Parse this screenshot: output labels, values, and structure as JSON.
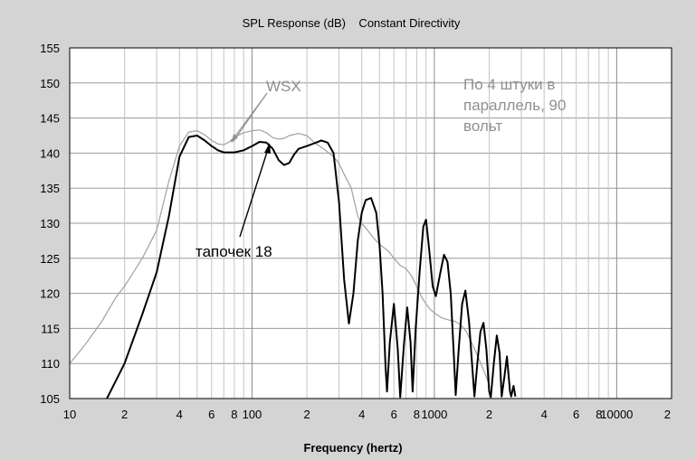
{
  "chart_data": {
    "type": "line",
    "title": "SPL Response (dB)    Constant Directivity",
    "xlabel": "Frequency (hertz)",
    "ylabel": "",
    "x_scale": "log",
    "xlim": [
      10,
      20000
    ],
    "ylim": [
      105,
      155
    ],
    "grid": true,
    "y_ticks": [
      "155",
      "150",
      "145",
      "140",
      "135",
      "130",
      "125",
      "120",
      "115",
      "110",
      "105"
    ],
    "x_ticks": [
      {
        "value": 10,
        "label": "10"
      },
      {
        "value": 20,
        "label": "2"
      },
      {
        "value": 40,
        "label": "4"
      },
      {
        "value": 60,
        "label": "6"
      },
      {
        "value": 80,
        "label": "8"
      },
      {
        "value": 100,
        "label": "100"
      },
      {
        "value": 200,
        "label": "2"
      },
      {
        "value": 400,
        "label": "4"
      },
      {
        "value": 600,
        "label": "6"
      },
      {
        "value": 800,
        "label": "8"
      },
      {
        "value": 1000,
        "label": "1000"
      },
      {
        "value": 2000,
        "label": "2"
      },
      {
        "value": 4000,
        "label": "4"
      },
      {
        "value": 6000,
        "label": "6"
      },
      {
        "value": 8000,
        "label": "8"
      },
      {
        "value": 10000,
        "label": "10000"
      },
      {
        "value": 20000,
        "label": "2"
      }
    ],
    "series": [
      {
        "name": "WSX",
        "color": "#a0a0a0",
        "points": [
          [
            10,
            110
          ],
          [
            12,
            112.5
          ],
          [
            15,
            116
          ],
          [
            18,
            119.5
          ],
          [
            20,
            121
          ],
          [
            25,
            125
          ],
          [
            30,
            129
          ],
          [
            35,
            136
          ],
          [
            40,
            141
          ],
          [
            45,
            143
          ],
          [
            50,
            143.2
          ],
          [
            55,
            142.6
          ],
          [
            60,
            141.8
          ],
          [
            65,
            141.3
          ],
          [
            70,
            141.2
          ],
          [
            75,
            141.6
          ],
          [
            80,
            142.3
          ],
          [
            90,
            142.9
          ],
          [
            100,
            143.2
          ],
          [
            110,
            143.3
          ],
          [
            120,
            142.9
          ],
          [
            130,
            142.2
          ],
          [
            140,
            142
          ],
          [
            150,
            142.1
          ],
          [
            160,
            142.5
          ],
          [
            180,
            142.8
          ],
          [
            200,
            142.5
          ],
          [
            220,
            141.5
          ],
          [
            250,
            140.5
          ],
          [
            280,
            139.5
          ],
          [
            300,
            138.5
          ],
          [
            320,
            137
          ],
          [
            350,
            135
          ],
          [
            380,
            131
          ],
          [
            400,
            130
          ],
          [
            430,
            129
          ],
          [
            460,
            128
          ],
          [
            500,
            127
          ],
          [
            530,
            126.5
          ],
          [
            560,
            126
          ],
          [
            600,
            125
          ],
          [
            650,
            124
          ],
          [
            700,
            123.5
          ],
          [
            750,
            122.5
          ],
          [
            800,
            121
          ],
          [
            850,
            119.5
          ],
          [
            900,
            118.5
          ],
          [
            950,
            117.7
          ],
          [
            1000,
            117.2
          ],
          [
            1100,
            116.5
          ],
          [
            1200,
            116.2
          ],
          [
            1300,
            116
          ],
          [
            1400,
            115.5
          ],
          [
            1500,
            114.5
          ],
          [
            1600,
            113
          ],
          [
            1700,
            111.5
          ],
          [
            1800,
            110
          ],
          [
            1900,
            108.5
          ],
          [
            2000,
            107
          ]
        ]
      },
      {
        "name": "тапочек 18",
        "color": "#000000",
        "points": [
          [
            16,
            105
          ],
          [
            20,
            110
          ],
          [
            25,
            117
          ],
          [
            30,
            123
          ],
          [
            35,
            131
          ],
          [
            40,
            139.5
          ],
          [
            45,
            142.3
          ],
          [
            50,
            142.5
          ],
          [
            55,
            141.8
          ],
          [
            60,
            141
          ],
          [
            65,
            140.4
          ],
          [
            70,
            140.1
          ],
          [
            75,
            140.1
          ],
          [
            80,
            140.1
          ],
          [
            90,
            140.4
          ],
          [
            100,
            141
          ],
          [
            110,
            141.6
          ],
          [
            120,
            141.5
          ],
          [
            130,
            140.6
          ],
          [
            140,
            139
          ],
          [
            150,
            138.3
          ],
          [
            160,
            138.6
          ],
          [
            170,
            139.8
          ],
          [
            180,
            140.6
          ],
          [
            200,
            141
          ],
          [
            220,
            141.4
          ],
          [
            240,
            141.8
          ],
          [
            260,
            141.5
          ],
          [
            280,
            140
          ],
          [
            300,
            133
          ],
          [
            320,
            122
          ],
          [
            340,
            115.7
          ],
          [
            360,
            120
          ],
          [
            380,
            127.5
          ],
          [
            400,
            131.5
          ],
          [
            420,
            133.3
          ],
          [
            450,
            133.6
          ],
          [
            480,
            131.5
          ],
          [
            500,
            127
          ],
          [
            520,
            120
          ],
          [
            540,
            109.5
          ],
          [
            550,
            106
          ],
          [
            570,
            113
          ],
          [
            600,
            118.5
          ],
          [
            630,
            112
          ],
          [
            650,
            105.2
          ],
          [
            680,
            112.5
          ],
          [
            710,
            118
          ],
          [
            740,
            113
          ],
          [
            760,
            106
          ],
          [
            790,
            115
          ],
          [
            830,
            123
          ],
          [
            870,
            129.5
          ],
          [
            900,
            130.5
          ],
          [
            930,
            127
          ],
          [
            980,
            121
          ],
          [
            1020,
            119.6
          ],
          [
            1080,
            123
          ],
          [
            1130,
            125.5
          ],
          [
            1180,
            124.5
          ],
          [
            1230,
            120
          ],
          [
            1280,
            111
          ],
          [
            1310,
            105.5
          ],
          [
            1360,
            112
          ],
          [
            1420,
            118.5
          ],
          [
            1480,
            120.4
          ],
          [
            1550,
            116
          ],
          [
            1620,
            109
          ],
          [
            1660,
            105.3
          ],
          [
            1720,
            110
          ],
          [
            1790,
            114.5
          ],
          [
            1860,
            115.8
          ],
          [
            1930,
            112
          ],
          [
            2000,
            106
          ],
          [
            2040,
            105.2
          ],
          [
            2120,
            110
          ],
          [
            2200,
            114
          ],
          [
            2280,
            111.5
          ],
          [
            2340,
            105.3
          ],
          [
            2420,
            108
          ],
          [
            2500,
            111
          ],
          [
            2600,
            106
          ],
          [
            2640,
            105.3
          ],
          [
            2720,
            106.8
          ],
          [
            2780,
            105.3
          ]
        ]
      }
    ],
    "annotations": [
      {
        "text": "WSX",
        "color": "#909090"
      },
      {
        "text": "По 4 штуки в параллель, 90 вольт",
        "color": "#909090"
      },
      {
        "text": "тапочек 18",
        "color": "#000000"
      }
    ]
  }
}
